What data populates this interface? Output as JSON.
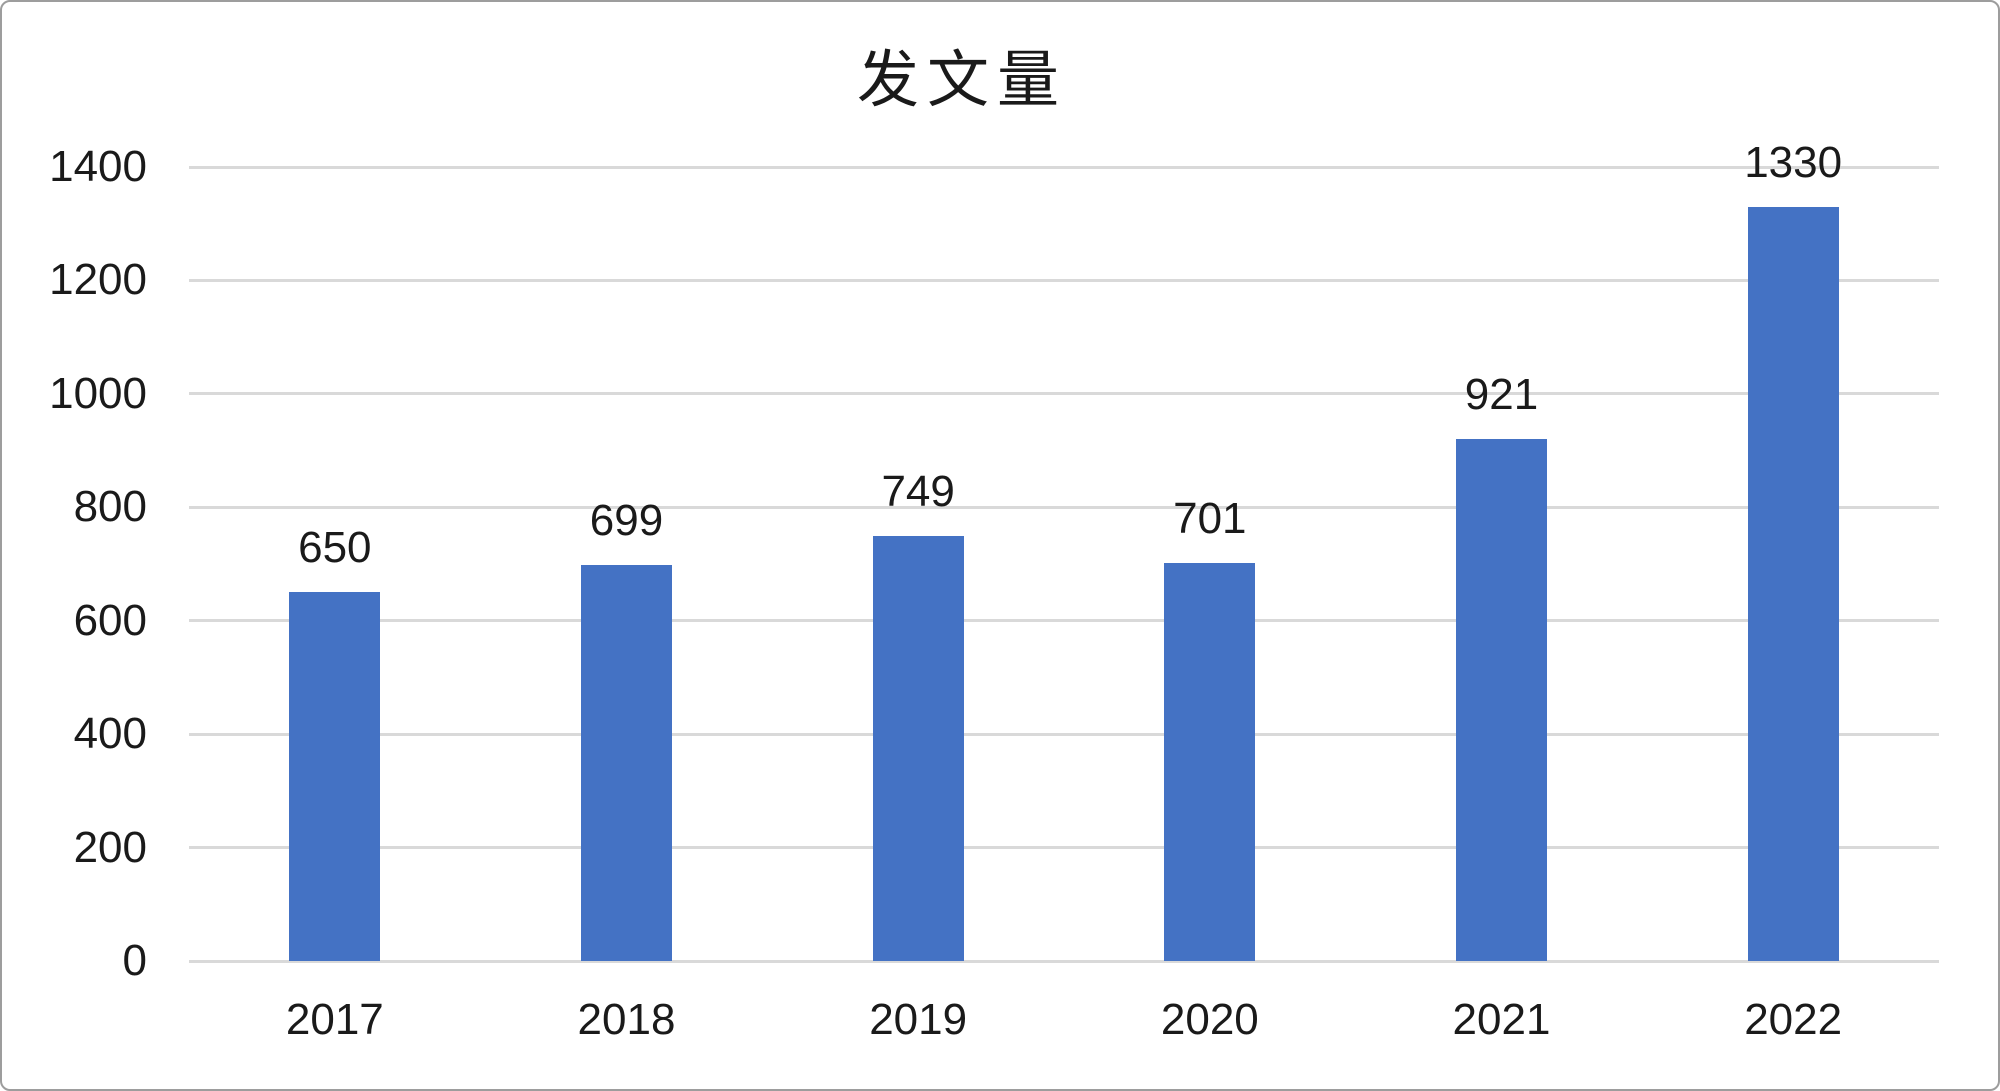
{
  "chart": {
    "bar_color": "#4472C4",
    "gridline_color": "#D9D9D9",
    "text_color": "#1A1A1A",
    "background_color": "#FFFFFF",
    "border_color": "#9D9D9D"
  },
  "chart_data": {
    "type": "bar",
    "title": "发文量",
    "categories": [
      "2017",
      "2018",
      "2019",
      "2020",
      "2021",
      "2022"
    ],
    "values": [
      650,
      699,
      749,
      701,
      921,
      1330
    ],
    "xlabel": "",
    "ylabel": "",
    "ylim": [
      0,
      1400
    ],
    "yticks": [
      0,
      200,
      400,
      600,
      800,
      1000,
      1200,
      1400
    ],
    "grid": true,
    "legend": false,
    "data_labels": true,
    "data_label_position": "outside-end"
  }
}
